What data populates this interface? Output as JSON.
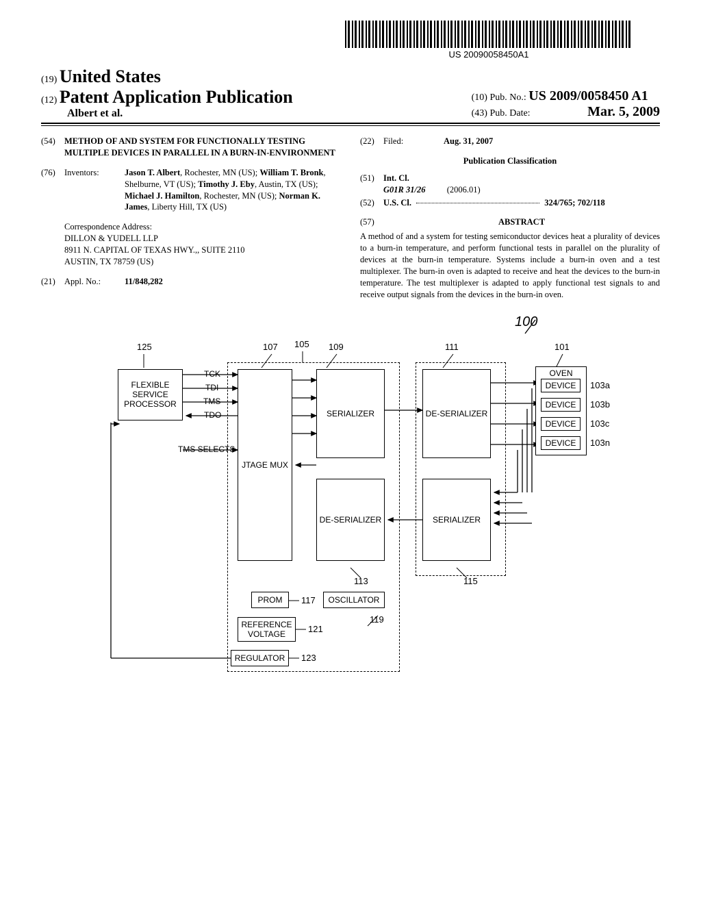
{
  "barcode": {
    "text": "US 20090058450A1"
  },
  "header": {
    "code19": "(19)",
    "country": "United States",
    "code12": "(12)",
    "pubtype": "Patent Application Publication",
    "authors": "Albert et al.",
    "code10": "(10)",
    "pubno_label": "Pub. No.:",
    "pubno_value": "US 2009/0058450 A1",
    "code43": "(43)",
    "pubdate_label": "Pub. Date:",
    "pubdate_value": "Mar. 5, 2009"
  },
  "left": {
    "code54": "(54)",
    "title": "METHOD OF AND SYSTEM FOR FUNCTIONALLY TESTING MULTIPLE DEVICES IN PARALLEL IN A BURN-IN-ENVIRONMENT",
    "code76": "(76)",
    "inventors_label": "Inventors:",
    "inventors_html": "<b>Jason T. Albert</b>, Rochester, MN (US); <b>William T. Bronk</b>, Shelburne, VT (US); <b>Timothy J. Eby</b>, Austin, TX (US); <b>Michael J. Hamilton</b>, Rochester, MN (US); <b>Norman K. James</b>, Liberty Hill, TX (US)",
    "corr_label": "Correspondence Address:",
    "corr_line1": "DILLON & YUDELL LLP",
    "corr_line2": "8911 N. CAPITAL OF TEXAS HWY.,, SUITE 2110",
    "corr_line3": "AUSTIN, TX 78759 (US)",
    "code21": "(21)",
    "appl_label": "Appl. No.:",
    "appl_value": "11/848,282"
  },
  "right": {
    "code22": "(22)",
    "filed_label": "Filed:",
    "filed_value": "Aug. 31, 2007",
    "pubclass_heading": "Publication Classification",
    "code51": "(51)",
    "intcl_label": "Int. Cl.",
    "intcl_code": "G01R 31/26",
    "intcl_year": "(2006.01)",
    "code52": "(52)",
    "uscl_label": "U.S. Cl.",
    "uscl_value": "324/765; 702/118",
    "code57": "(57)",
    "abstract_label": "ABSTRACT",
    "abstract_text": "A method of and a system for testing semiconductor devices heat a plurality of devices to a burn-in temperature, and perform functional tests in parallel on the plurality of devices at the burn-in temperature. Systems include a burn-in oven and a test multiplexer. The burn-in oven is adapted to receive and heat the devices to the burn-in temperature. The test multiplexer is adapted to apply functional test signals to and receive output signals from the devices in the burn-in oven."
  },
  "diagram": {
    "ref100": "100",
    "refs": {
      "r125": "125",
      "r107": "107",
      "r105": "105",
      "r109": "109",
      "r111": "111",
      "r101": "101",
      "r103a": "103a",
      "r103b": "103b",
      "r103c": "103c",
      "r103n": "103n",
      "r113": "113",
      "r115": "115",
      "r117": "117",
      "r119": "119",
      "r121": "121",
      "r123": "123"
    },
    "boxes": {
      "fsp": "FLEXIBLE SERVICE PROCESSOR",
      "jtag": "JTAGE MUX",
      "serializer": "SERIALIZER",
      "deserializer_top": "DE-SERIALIZER",
      "deserializer_bot": "DE-SERIALIZER",
      "serializer_bot": "SERIALIZER",
      "oven": "OVEN",
      "device": "DEVICE",
      "prom": "PROM",
      "oscillator": "OSCILLATOR",
      "refvolt": "REFERENCE VOLTAGE",
      "regulator": "REGULATOR"
    },
    "signals": {
      "tck": "TCK",
      "tdi": "TDI",
      "tms": "TMS",
      "tdo": "TDO",
      "tms_selects": "TMS SELECTS"
    }
  }
}
